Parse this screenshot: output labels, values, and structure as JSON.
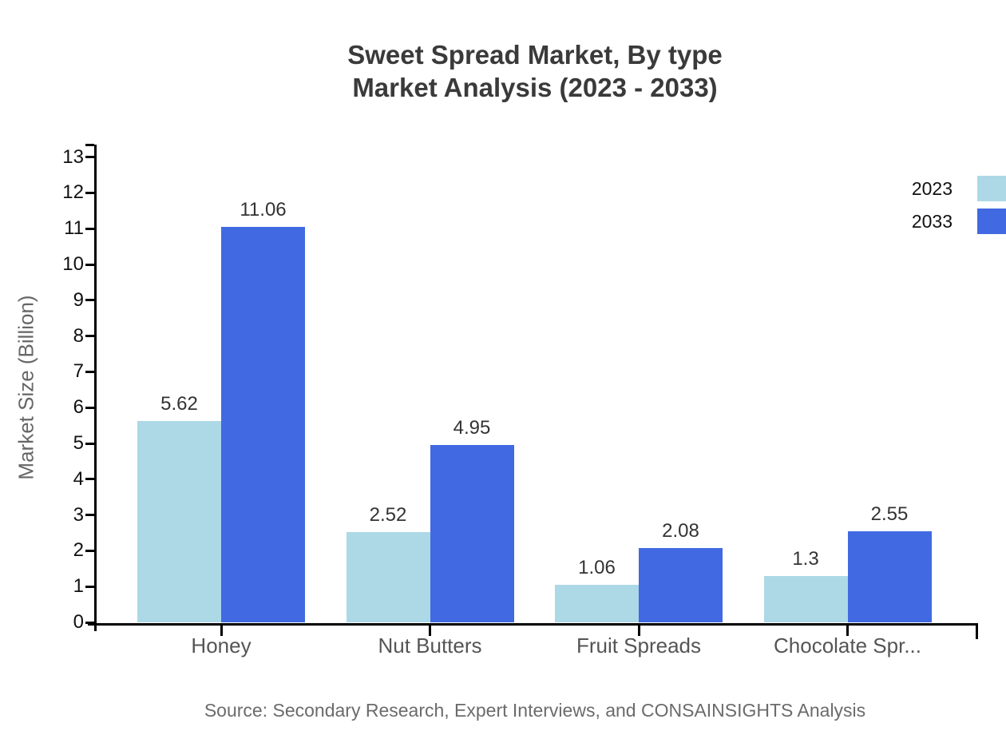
{
  "title": {
    "line1": "Sweet Spread Market, By type",
    "line2": "Market Analysis (2023 - 2033)"
  },
  "source": "Source: Secondary Research, Expert Interviews, and CONSAINSIGHTS Analysis",
  "legend": [
    {
      "label": "2023",
      "color": "#ADD8E6"
    },
    {
      "label": "2033",
      "color": "#4169E1"
    }
  ],
  "colors": {
    "axis": "#000000",
    "title_text": "#3a3a3a",
    "tick_text": "#111111",
    "category_text": "#555555",
    "muted_text": "#6b6b6b",
    "series_2023": "#ADD8E6",
    "series_2033": "#4169E1",
    "background": "#ffffff"
  },
  "chart_data": {
    "type": "bar",
    "title": "Sweet Spread Market, By type — Market Analysis (2023 - 2033)",
    "categories": [
      "Honey",
      "Nut Butters",
      "Fruit Spreads",
      "Chocolate Spr..."
    ],
    "series": [
      {
        "name": "2023",
        "color": "#ADD8E6",
        "values": [
          5.62,
          2.52,
          1.06,
          1.3
        ]
      },
      {
        "name": "2033",
        "color": "#4169E1",
        "values": [
          11.06,
          4.95,
          2.08,
          2.55
        ]
      }
    ],
    "xlabel": "",
    "ylabel": "Market Size (Billion)",
    "ylim": [
      0,
      13
    ],
    "yticks": [
      0,
      1,
      2,
      3,
      4,
      5,
      6,
      7,
      8,
      9,
      10,
      11,
      12,
      13
    ],
    "grid": false,
    "legend_position": "top-right",
    "value_labels": true
  }
}
